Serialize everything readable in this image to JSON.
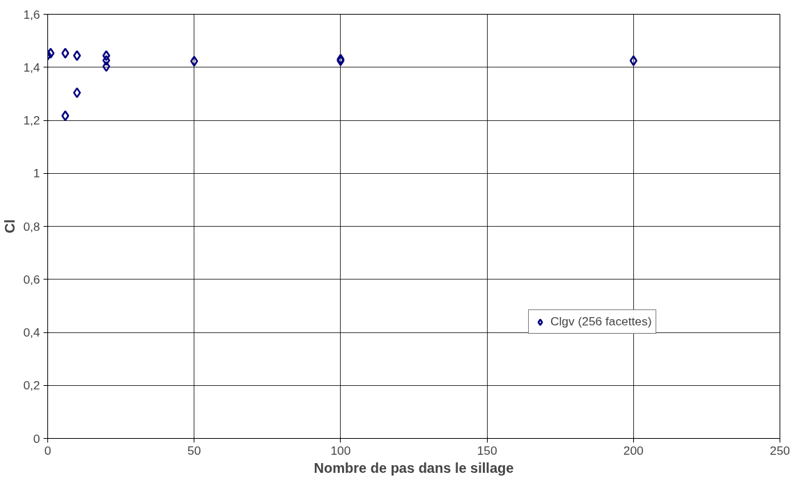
{
  "chart_data": {
    "type": "scatter",
    "xlabel": "Nombre de pas dans le sillage",
    "ylabel": "Cl",
    "xlim": [
      0,
      250
    ],
    "xticks": [
      0,
      50,
      100,
      150,
      200,
      250
    ],
    "ylim": [
      0,
      1.6
    ],
    "yticks": [
      {
        "value": 0,
        "label": "0"
      },
      {
        "value": 0.2,
        "label": "0,2"
      },
      {
        "value": 0.4,
        "label": "0,4"
      },
      {
        "value": 0.6,
        "label": "0,6"
      },
      {
        "value": 0.8,
        "label": "0,8"
      },
      {
        "value": 1,
        "label": "1"
      },
      {
        "value": 1.2,
        "label": "1,2"
      },
      {
        "value": 1.4,
        "label": "1,4"
      },
      {
        "value": 1.6,
        "label": "1,6"
      }
    ],
    "series": [
      {
        "name": "Clgv (256 facettes)",
        "color": "#000080",
        "x": [
          0,
          1,
          6,
          6,
          10,
          10,
          20,
          20,
          20,
          50,
          100,
          100,
          200
        ],
        "values": [
          1.446,
          1.453,
          1.453,
          1.217,
          1.444,
          1.304,
          1.444,
          1.426,
          1.403,
          1.423,
          1.43,
          1.425,
          1.425
        ]
      }
    ],
    "marker": "diamond",
    "grid": true,
    "legend": "right"
  }
}
